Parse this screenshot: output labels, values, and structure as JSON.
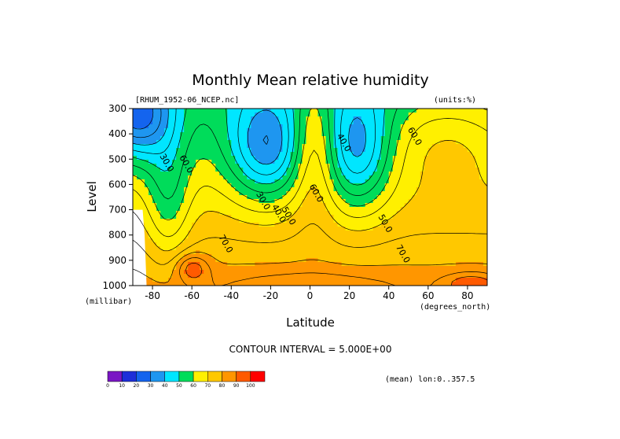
{
  "chart_data": {
    "type": "heatmap",
    "title": "Monthly Mean relative humidity",
    "subtitle_left": "[RHUM_1952-06_NCEP.nc]",
    "subtitle_right": "(units:%)",
    "xlabel": "Latitude",
    "ylabel": "Level",
    "x_unit": "(degrees_north)",
    "y_unit": "(millibar)",
    "xlim": [
      -90,
      90
    ],
    "ylim": [
      300,
      1000
    ],
    "x_ticks": [
      -80,
      -60,
      -40,
      -20,
      0,
      20,
      40,
      60,
      80
    ],
    "x_tick_labels": [
      "-80",
      "-60",
      "-40",
      "-20",
      "0",
      "20",
      "40",
      "60",
      "80"
    ],
    "y_ticks": [
      300,
      400,
      500,
      600,
      700,
      800,
      900,
      1000
    ],
    "y_tick_labels": [
      "300",
      "400",
      "500",
      "600",
      "700",
      "800",
      "900",
      "1000"
    ],
    "contour_interval_text": "CONTOUR INTERVAL = 5.000E+00",
    "footer_right": "(mean) lon:0..357.5",
    "contour_labels": [
      {
        "text": "30.0",
        "x": -74,
        "y": 520
      },
      {
        "text": "60.0",
        "x": -64,
        "y": 525
      },
      {
        "text": "30.0",
        "x": -25,
        "y": 670
      },
      {
        "text": "40.0",
        "x": -17,
        "y": 720
      },
      {
        "text": "50.0",
        "x": -12,
        "y": 730
      },
      {
        "text": "60.0",
        "x": 2,
        "y": 640
      },
      {
        "text": "40.0",
        "x": 16,
        "y": 440
      },
      {
        "text": "50.0",
        "x": 37,
        "y": 760
      },
      {
        "text": "60.0",
        "x": 52,
        "y": 415
      },
      {
        "text": "70.0",
        "x": -44,
        "y": 840
      },
      {
        "text": "70.0",
        "x": 46,
        "y": 880
      }
    ],
    "colorbar": {
      "levels": [
        0,
        10,
        20,
        30,
        40,
        50,
        60,
        70,
        80,
        90,
        100
      ],
      "tick_labels": [
        "0",
        "10",
        "20",
        "30",
        "40",
        "50",
        "60",
        "70",
        "80",
        "90",
        "100"
      ],
      "colors": [
        "#7a16c4",
        "#1e2fd9",
        "#1464ee",
        "#1e96f0",
        "#00e6ff",
        "#00dc5a",
        "#fff000",
        "#ffc800",
        "#ff9600",
        "#ff5a00",
        "#ff0000"
      ]
    },
    "missing_region": "white area near latitude -90 to -84, levels 700 to 1000"
  }
}
